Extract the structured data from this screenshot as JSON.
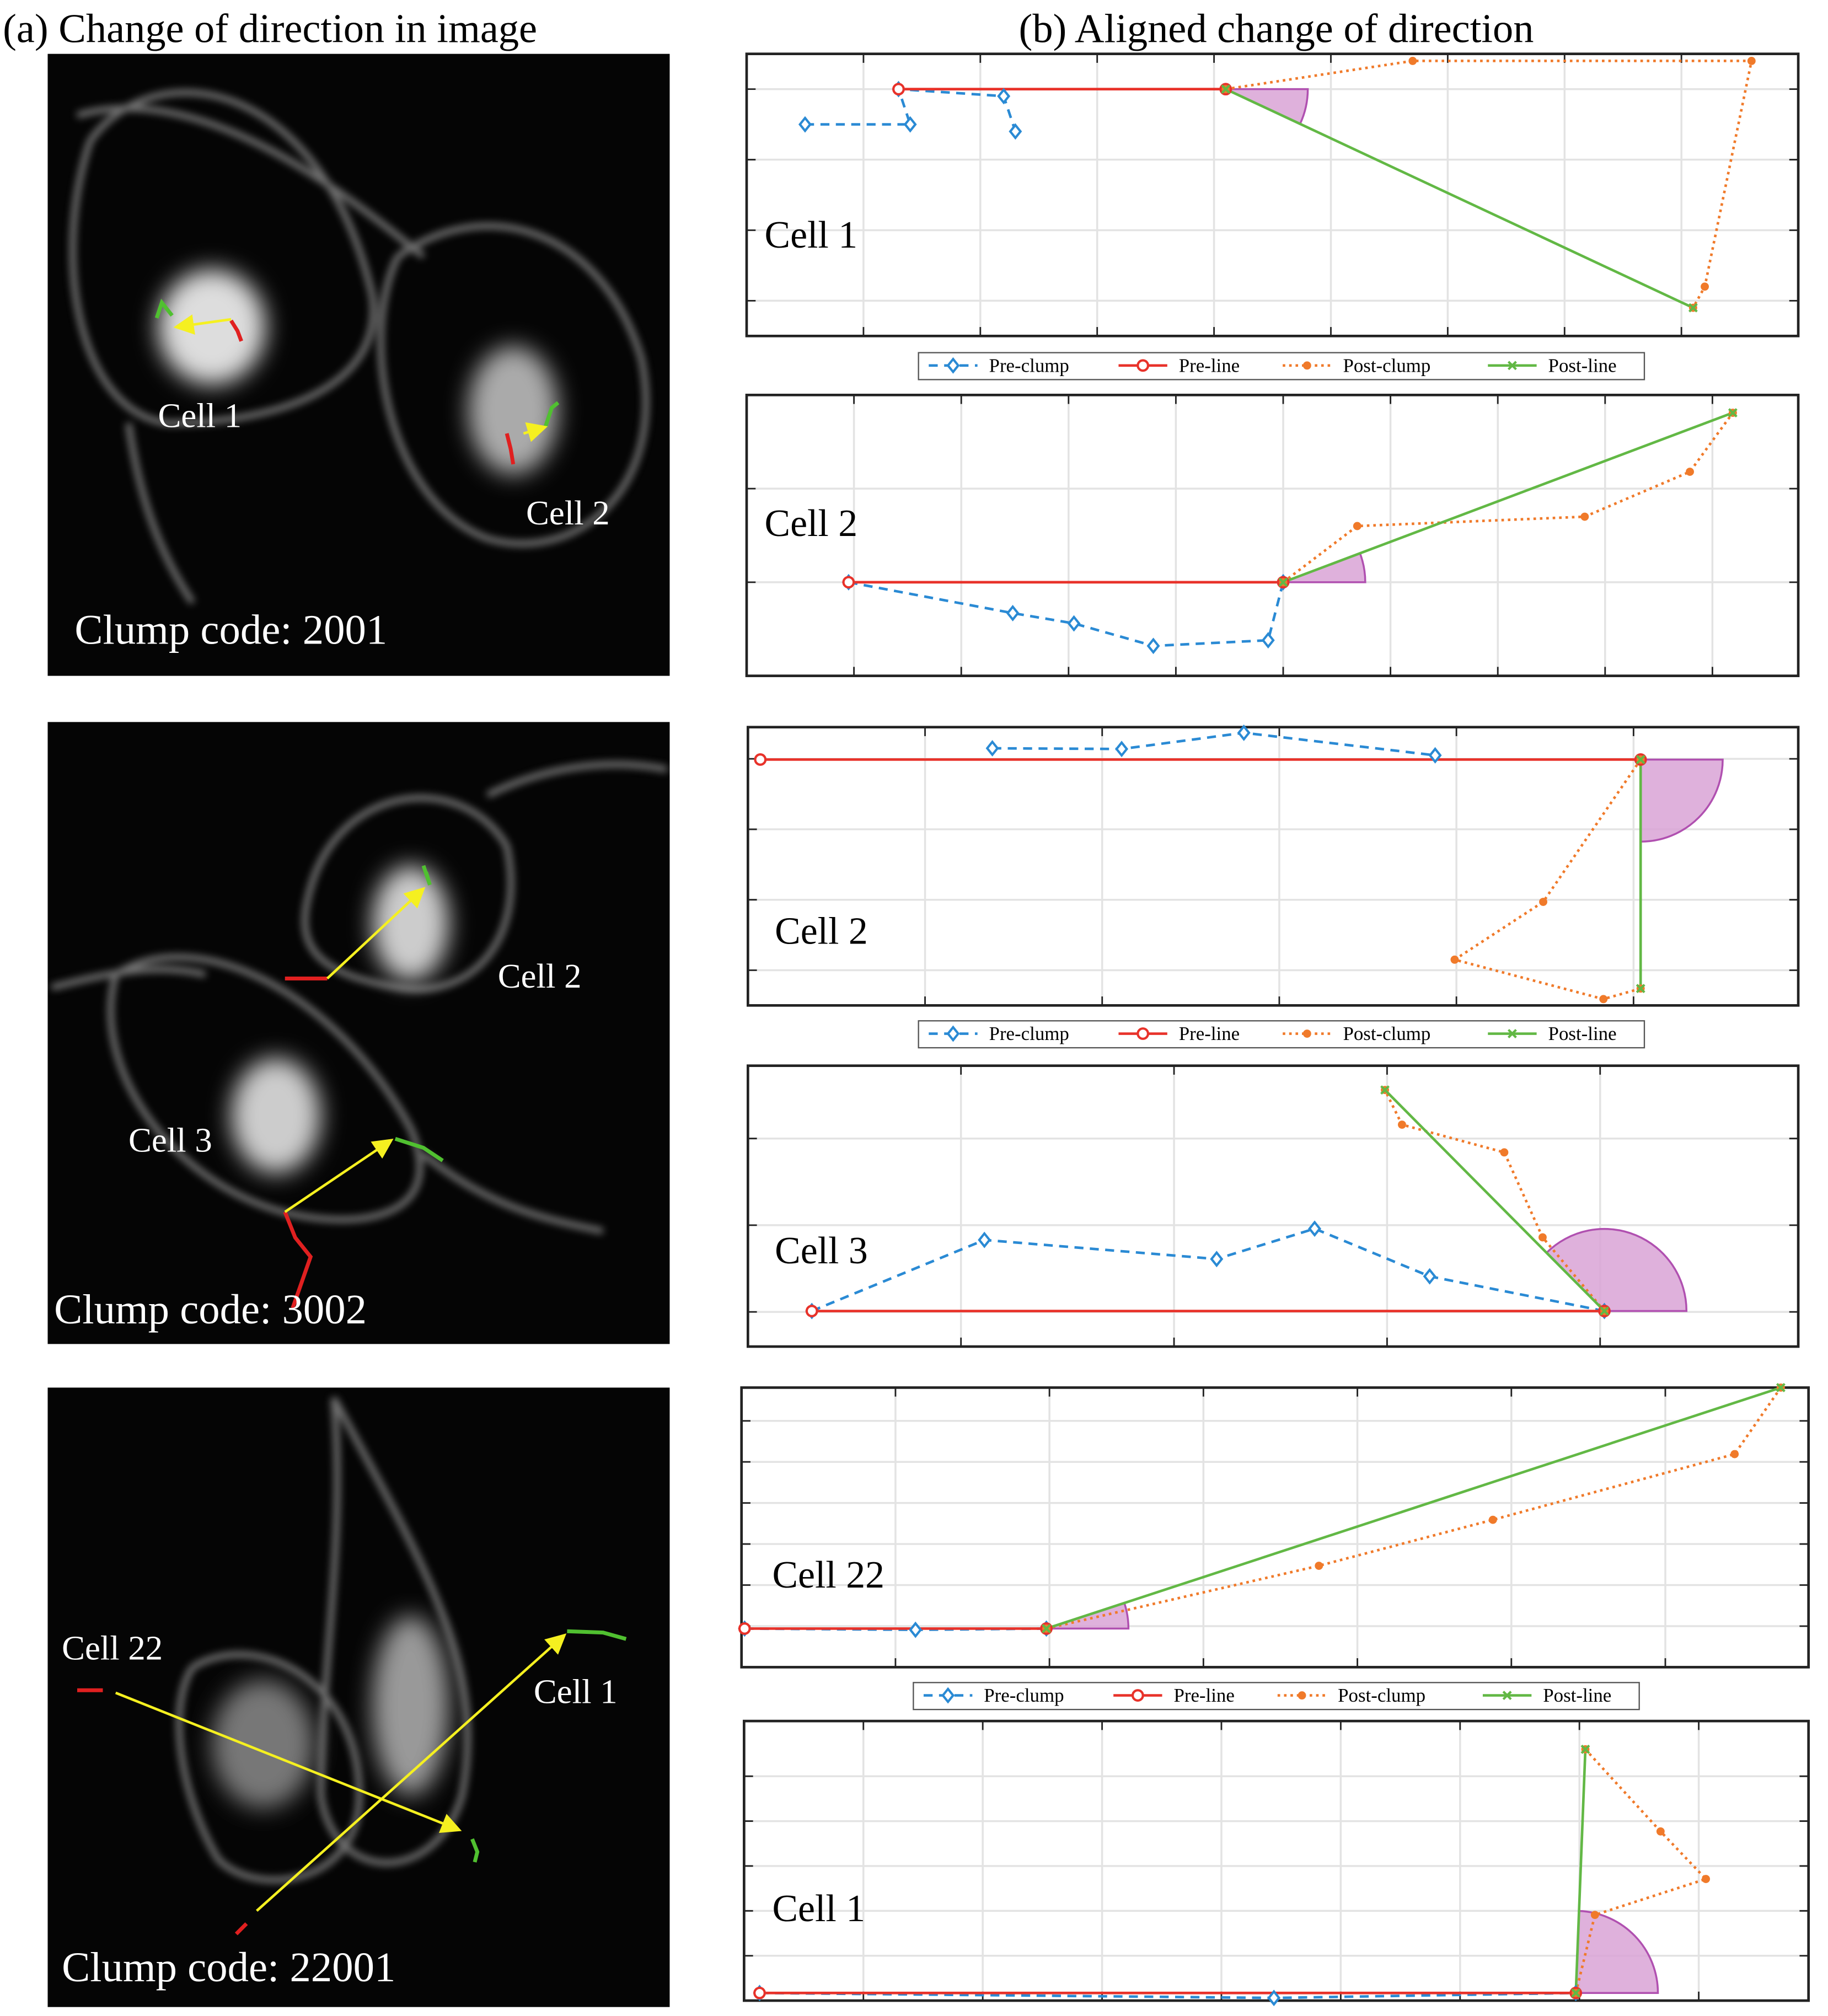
{
  "titles": {
    "a": "(a) Change of direction in image",
    "b": "(b) Aligned change of direction"
  },
  "images": [
    {
      "labels": [
        "Cell 1",
        "Cell 2"
      ],
      "clump_code": "Clump code: 2001"
    },
    {
      "labels": [
        "Cell 2",
        "Cell 3"
      ],
      "clump_code": "Clump code: 3002"
    },
    {
      "labels": [
        "Cell 22",
        "Cell 1"
      ],
      "clump_code": "Clump code: 22001"
    }
  ],
  "chart_data": [
    {
      "type": "line",
      "annotation": "Cell 1",
      "xlim": [
        0,
        9
      ],
      "ylim": [
        0,
        4
      ],
      "xticks": [
        1,
        2,
        3,
        4,
        5,
        6,
        7,
        8
      ],
      "yticks": [
        0.5,
        1.5,
        2.5,
        3.5
      ],
      "grid": true,
      "series": [
        {
          "name": "Pre-clump",
          "color": "#2a8ad4",
          "linestyle": "dashed",
          "marker": "diamond",
          "x": [
            0.5,
            1.4,
            1.3,
            2.2,
            2.3
          ],
          "values": [
            3.0,
            3.0,
            3.5,
            3.4,
            2.9
          ]
        },
        {
          "name": "Pre-line",
          "color": "#e8322a",
          "linestyle": "solid",
          "marker": "circle",
          "x": [
            1.3,
            4.1
          ],
          "values": [
            3.5,
            3.5
          ]
        },
        {
          "name": "Post-clump",
          "color": "#f07a2a",
          "linestyle": "dotted",
          "marker": "dot",
          "x": [
            4.1,
            5.7,
            8.6,
            8.2,
            8.1
          ],
          "values": [
            3.5,
            3.9,
            3.9,
            0.7,
            0.4
          ]
        },
        {
          "name": "Post-line",
          "color": "#62b845",
          "linestyle": "solid",
          "marker": "x",
          "x": [
            4.1,
            8.1
          ],
          "values": [
            3.5,
            0.4
          ]
        }
      ]
    },
    {
      "type": "line",
      "annotation": "Cell 2",
      "xlim": [
        0,
        9.8
      ],
      "ylim": [
        0,
        3
      ],
      "xticks": [
        1,
        2,
        3,
        4,
        5,
        6,
        7,
        8,
        9
      ],
      "yticks": [
        1,
        2
      ],
      "grid": true,
      "series": [
        {
          "name": "Pre-clump",
          "color": "#2a8ad4",
          "linestyle": "dashed",
          "marker": "diamond",
          "x": [
            0.95,
            2.48,
            3.05,
            3.79,
            4.86,
            5.0
          ],
          "values": [
            1.0,
            0.67,
            0.56,
            0.32,
            0.38,
            1.0
          ]
        },
        {
          "name": "Pre-line",
          "color": "#e8322a",
          "linestyle": "solid",
          "marker": "circle",
          "x": [
            0.95,
            5.0
          ],
          "values": [
            1.0,
            1.0
          ]
        },
        {
          "name": "Post-clump",
          "color": "#f07a2a",
          "linestyle": "dotted",
          "marker": "dot",
          "x": [
            5.0,
            5.69,
            7.81,
            8.79,
            9.19
          ],
          "values": [
            1.0,
            1.6,
            1.7,
            2.18,
            2.81
          ]
        },
        {
          "name": "Post-line",
          "color": "#62b845",
          "linestyle": "solid",
          "marker": "x",
          "x": [
            5.0,
            9.19
          ],
          "values": [
            1.0,
            2.81
          ]
        }
      ]
    },
    {
      "type": "line",
      "annotation": "Cell 2",
      "xlim": [
        0,
        5.93
      ],
      "ylim": [
        0,
        3.95
      ],
      "xticks": [
        1,
        2,
        3,
        4,
        5
      ],
      "yticks": [
        0.5,
        1.5,
        2.5,
        3.5
      ],
      "grid": true,
      "series": [
        {
          "name": "Pre-clump",
          "color": "#2a8ad4",
          "linestyle": "dashed",
          "marker": "diamond",
          "x": [
            1.38,
            2.11,
            2.8,
            3.88
          ],
          "values": [
            3.65,
            3.64,
            3.87,
            3.55
          ]
        },
        {
          "name": "Pre-line",
          "color": "#e8322a",
          "linestyle": "solid",
          "marker": "circle",
          "x": [
            0.07,
            5.04
          ],
          "values": [
            3.49,
            3.49
          ]
        },
        {
          "name": "Post-clump",
          "color": "#f07a2a",
          "linestyle": "dotted",
          "marker": "dot",
          "x": [
            5.04,
            4.49,
            3.99,
            4.83,
            5.04
          ],
          "values": [
            3.49,
            1.47,
            0.65,
            0.09,
            0.24
          ]
        },
        {
          "name": "Post-line",
          "color": "#62b845",
          "linestyle": "solid",
          "marker": "x",
          "x": [
            5.04,
            5.04
          ],
          "values": [
            3.49,
            0.24
          ]
        }
      ]
    },
    {
      "type": "line",
      "annotation": "Cell 3",
      "xlim": [
        0,
        4.93
      ],
      "ylim": [
        0,
        3.24
      ],
      "xticks": [
        1,
        2,
        3,
        4
      ],
      "yticks": [
        0.4,
        1.4,
        2.4
      ],
      "grid": true,
      "series": [
        {
          "name": "Pre-clump",
          "color": "#2a8ad4",
          "linestyle": "dashed",
          "marker": "diamond",
          "x": [
            0.3,
            1.11,
            2.2,
            2.66,
            3.2,
            4.02
          ],
          "values": [
            0.41,
            1.23,
            1.01,
            1.36,
            0.81,
            0.41
          ]
        },
        {
          "name": "Pre-line",
          "color": "#e8322a",
          "linestyle": "solid",
          "marker": "circle",
          "x": [
            0.3,
            4.02
          ],
          "values": [
            0.41,
            0.41
          ]
        },
        {
          "name": "Post-clump",
          "color": "#f07a2a",
          "linestyle": "dotted",
          "marker": "dot",
          "x": [
            4.02,
            3.73,
            3.55,
            3.07,
            2.99
          ],
          "values": [
            0.41,
            1.26,
            2.24,
            2.56,
            2.96
          ]
        },
        {
          "name": "Post-line",
          "color": "#62b845",
          "linestyle": "solid",
          "marker": "x",
          "x": [
            4.02,
            2.99
          ],
          "values": [
            0.41,
            2.96
          ]
        }
      ]
    },
    {
      "type": "line",
      "annotation": "Cell 22",
      "xlim": [
        0,
        6.93
      ],
      "ylim": [
        0,
        6.81
      ],
      "xticks": [
        1,
        2,
        3,
        4,
        5,
        6
      ],
      "yticks": [
        1,
        2,
        3,
        4,
        5,
        6
      ],
      "grid": true,
      "series": [
        {
          "name": "Pre-clump",
          "color": "#2a8ad4",
          "linestyle": "dashed",
          "marker": "diamond",
          "x": [
            0.02,
            1.13,
            1.98
          ],
          "values": [
            0.94,
            0.91,
            0.94
          ]
        },
        {
          "name": "Pre-line",
          "color": "#e8322a",
          "linestyle": "solid",
          "marker": "circle",
          "x": [
            0.02,
            1.98
          ],
          "values": [
            0.94,
            0.94
          ]
        },
        {
          "name": "Post-clump",
          "color": "#f07a2a",
          "linestyle": "dotted",
          "marker": "dot",
          "x": [
            1.98,
            3.75,
            4.88,
            6.45,
            6.75
          ],
          "values": [
            0.94,
            2.47,
            3.59,
            5.19,
            6.81
          ]
        },
        {
          "name": "Post-line",
          "color": "#62b845",
          "linestyle": "solid",
          "marker": "x",
          "x": [
            1.98,
            6.75
          ],
          "values": [
            0.94,
            6.81
          ]
        }
      ]
    },
    {
      "type": "line",
      "annotation": "Cell 1",
      "xlim": [
        0,
        8.92
      ],
      "ylim": [
        0,
        6.23
      ],
      "xticks": [
        1,
        2,
        3,
        4,
        5,
        6,
        7,
        8
      ],
      "yticks": [
        1,
        2,
        3,
        4,
        5
      ],
      "grid": true,
      "series": [
        {
          "name": "Pre-clump",
          "color": "#2a8ad4",
          "linestyle": "dashed",
          "marker": "diamond",
          "x": [
            0.13,
            4.44,
            6.97
          ],
          "values": [
            0.17,
            0.06,
            0.17
          ]
        },
        {
          "name": "Pre-line",
          "color": "#e8322a",
          "linestyle": "solid",
          "marker": "circle",
          "x": [
            0.13,
            6.97
          ],
          "values": [
            0.17,
            0.17
          ]
        },
        {
          "name": "Post-clump",
          "color": "#f07a2a",
          "linestyle": "dotted",
          "marker": "dot",
          "x": [
            6.97,
            7.13,
            8.06,
            7.68,
            7.05
          ],
          "values": [
            0.17,
            1.91,
            2.71,
            3.77,
            5.6
          ]
        },
        {
          "name": "Post-line",
          "color": "#62b845",
          "linestyle": "solid",
          "marker": "x",
          "x": [
            6.97,
            7.05
          ],
          "values": [
            0.17,
            5.6
          ]
        }
      ]
    }
  ]
}
